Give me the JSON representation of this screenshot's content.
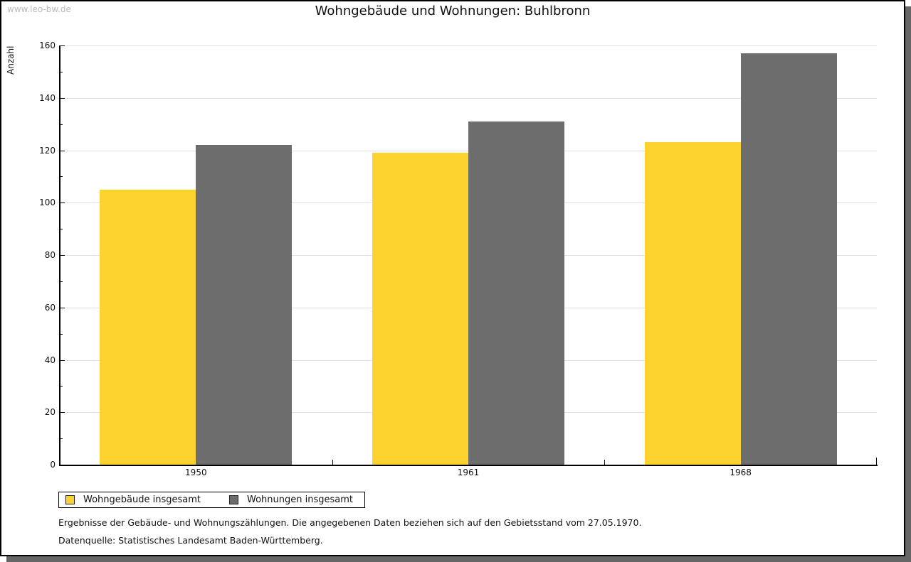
{
  "watermark": "www.leo-bw.de",
  "footer": {
    "note": "Ergebnisse der Gebäude- und Wohnungszählungen. Die angegebenen Daten beziehen sich auf den Gebietsstand vom 27.05.1970.",
    "source": "Datenquelle: Statistisches Landesamt Baden-Württemberg."
  },
  "colors": {
    "series_yellow": "#FCD32E",
    "series_gray": "#6D6D6D",
    "gridline": "#E0E0E0",
    "watermark_text": "#BBBBBB",
    "page_shadow": "#666666",
    "axis": "#000000"
  },
  "chart_data": {
    "type": "bar",
    "title": "Wohngebäude und Wohnungen: Buhlbronn",
    "categories": [
      "1950",
      "1961",
      "1968"
    ],
    "series": [
      {
        "name": "Wohngebäude insgesamt",
        "color": "#FCD32E",
        "values": [
          105,
          119,
          123
        ]
      },
      {
        "name": "Wohnungen insgesamt",
        "color": "#6D6D6D",
        "values": [
          122,
          131,
          157
        ]
      }
    ],
    "xlabel": "",
    "ylabel": "Anzahl",
    "ylim": [
      0,
      160
    ],
    "ytick_major": 20,
    "ytick_minor": 10,
    "grid": "horizontal-major",
    "legend_position": "bottom-left"
  }
}
